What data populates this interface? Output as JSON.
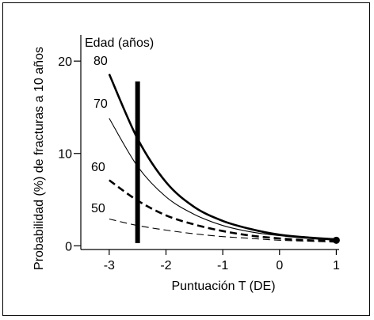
{
  "chart_data": {
    "type": "line",
    "xlabel": "Puntuación T (DE)",
    "ylabel": "Probabilidad (%) de fracturas a 10 años",
    "legend_title": "Edad (años)",
    "x_ticks": [
      "-3",
      "-2",
      "-1",
      "0",
      "1"
    ],
    "x_tick_values": [
      -3,
      -2,
      -1,
      0,
      1
    ],
    "y_ticks": [
      "20",
      "10",
      "0"
    ],
    "y_tick_values": [
      20,
      10,
      0
    ],
    "xlim": [
      -3.5,
      1.05
    ],
    "ylim": [
      -0.4,
      22.5
    ],
    "grid": false,
    "reference_line": {
      "x": -2.5,
      "style": "thick-vertical",
      "ymin": 0.3,
      "ymax": 17.8
    },
    "end_marker": {
      "x": 1,
      "y": 0.6
    },
    "series": [
      {
        "name": "80",
        "style": "thick-solid",
        "x": [
          -3,
          -2.5,
          -2,
          -1.5,
          -1,
          -0.5,
          0,
          0.5,
          1
        ],
        "y": [
          18.6,
          11.6,
          6.9,
          4.2,
          2.7,
          1.8,
          1.2,
          0.9,
          0.7
        ]
      },
      {
        "name": "70",
        "style": "thin-solid",
        "x": [
          -3,
          -2.5,
          -2,
          -1.5,
          -1,
          -0.5,
          0,
          0.5,
          1
        ],
        "y": [
          13.8,
          8.6,
          5.3,
          3.4,
          2.2,
          1.5,
          1.1,
          0.8,
          0.6
        ]
      },
      {
        "name": "60",
        "style": "thick-dashed",
        "x": [
          -3,
          -2.5,
          -2,
          -1.5,
          -1,
          -0.5,
          0,
          0.5,
          1
        ],
        "y": [
          7.1,
          4.9,
          3.3,
          2.3,
          1.6,
          1.1,
          0.8,
          0.6,
          0.5
        ]
      },
      {
        "name": "50",
        "style": "thin-dashed",
        "x": [
          -3,
          -2.5,
          -2,
          -1.5,
          -1,
          -0.5,
          0,
          0.5,
          1
        ],
        "y": [
          2.9,
          2.2,
          1.7,
          1.3,
          1.0,
          0.8,
          0.6,
          0.5,
          0.4
        ]
      }
    ]
  }
}
